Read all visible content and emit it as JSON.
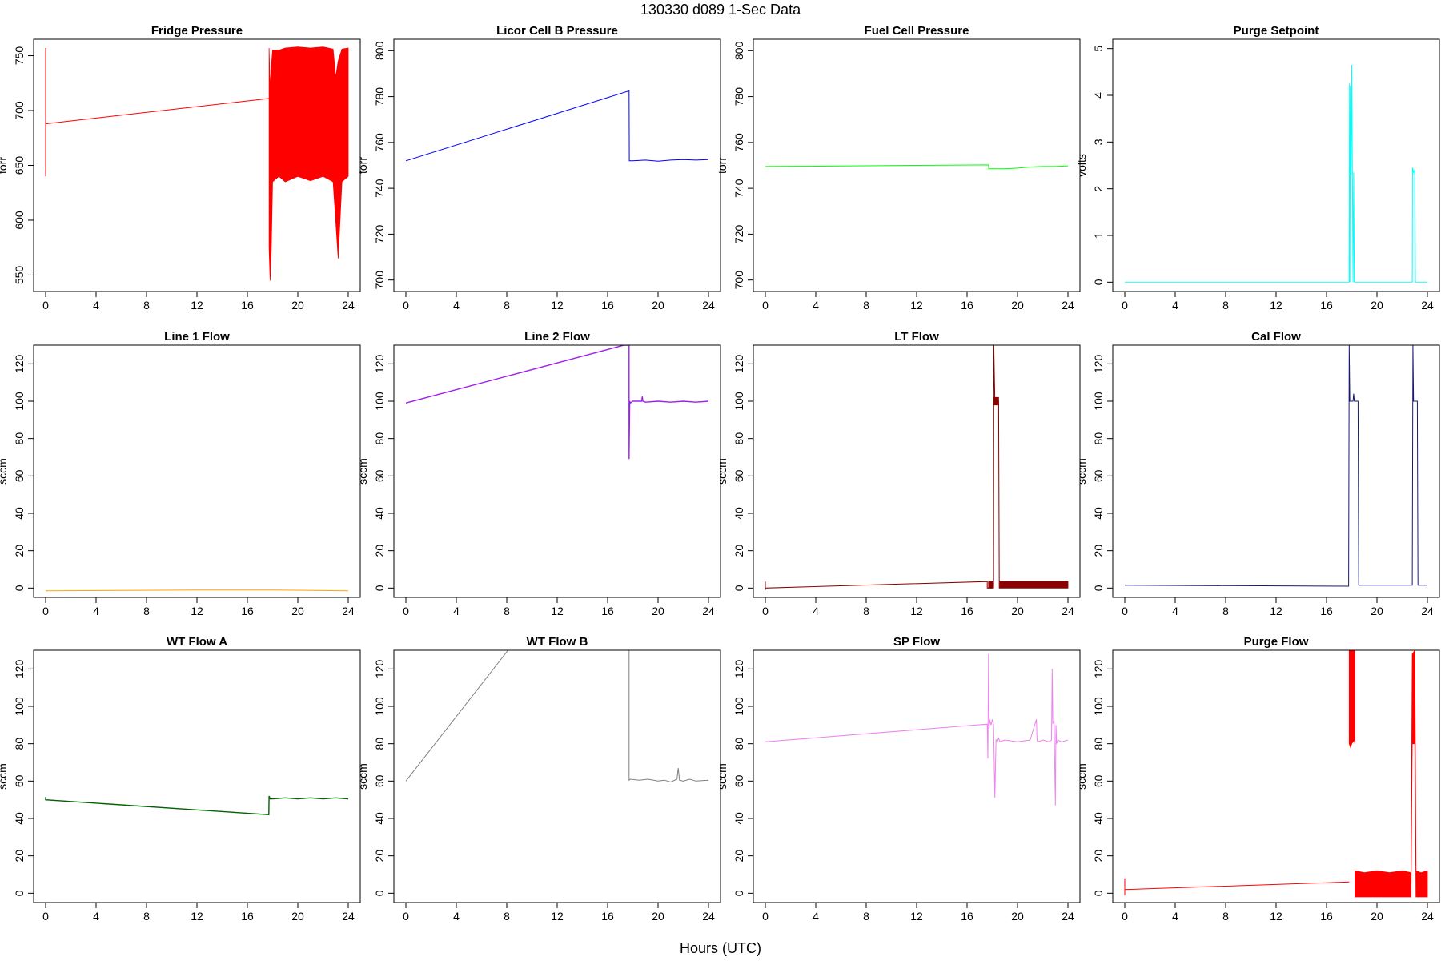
{
  "figure": {
    "title": "130330    d089    1-Sec Data",
    "xlabel": "Hours (UTC)"
  },
  "chart_data": [
    {
      "type": "line",
      "title": "Fridge Pressure",
      "ylabel": "torr",
      "xlim": [
        0,
        24
      ],
      "ylim": [
        535,
        765
      ],
      "xticks": [
        0,
        4,
        8,
        12,
        16,
        20,
        24
      ],
      "yticks": [
        550,
        600,
        650,
        700,
        750
      ],
      "color": "#ff0000",
      "series": [
        {
          "x": [
            0,
            0,
            0,
            0.05,
            17.7,
            17.72
          ],
          "y": [
            640,
            757,
            688,
            688,
            711,
            711
          ]
        },
        {
          "band": true,
          "x": [
            17.72,
            17.8,
            17.9,
            18.0,
            18.5,
            19,
            20,
            21,
            22,
            22.8,
            23.0,
            23.2,
            23.5,
            24.0
          ],
          "ymin": [
            575,
            545,
            575,
            635,
            640,
            635,
            640,
            636,
            640,
            635,
            600,
            565,
            635,
            640
          ],
          "ymax": [
            757,
            720,
            740,
            755,
            755,
            757,
            758,
            757,
            758,
            756,
            730,
            745,
            756,
            757
          ]
        }
      ]
    },
    {
      "type": "line",
      "title": "Licor Cell B Pressure",
      "ylabel": "torr",
      "xlim": [
        0,
        24
      ],
      "ylim": [
        695,
        805
      ],
      "xticks": [
        0,
        4,
        8,
        12,
        16,
        20,
        24
      ],
      "yticks": [
        700,
        720,
        740,
        760,
        780,
        800
      ],
      "color": "#0000ff",
      "series": [
        {
          "x": [
            0,
            17.7,
            17.72,
            18,
            19,
            20,
            21,
            22,
            23,
            24
          ],
          "y": [
            752,
            782.5,
            752,
            752,
            752.3,
            751.8,
            752.3,
            752.5,
            752.3,
            752.5
          ]
        }
      ]
    },
    {
      "type": "line",
      "title": "Fuel Cell Pressure",
      "ylabel": "torr",
      "xlim": [
        0,
        24
      ],
      "ylim": [
        695,
        805
      ],
      "xticks": [
        0,
        4,
        8,
        12,
        16,
        20,
        24
      ],
      "yticks": [
        700,
        720,
        740,
        760,
        780,
        800
      ],
      "color": "#00ff00",
      "series": [
        {
          "x": [
            0,
            17.7,
            17.72,
            19,
            20,
            21,
            22,
            23,
            24
          ],
          "y": [
            749.5,
            750.2,
            748.5,
            748.5,
            748.8,
            749.3,
            749.5,
            749.5,
            749.8
          ]
        }
      ]
    },
    {
      "type": "line",
      "title": "Purge Setpoint",
      "ylabel": "volts",
      "xlim": [
        0,
        24
      ],
      "ylim": [
        -0.2,
        5.2
      ],
      "xticks": [
        0,
        4,
        8,
        12,
        16,
        20,
        24
      ],
      "yticks": [
        0,
        1,
        2,
        3,
        4,
        5
      ],
      "color": "#00ffff",
      "series": [
        {
          "x": [
            0,
            17.8,
            17.82,
            17.85,
            17.9,
            17.95,
            18.0,
            18.05,
            18.1,
            18.15,
            18.2,
            18.25,
            22.8,
            22.82,
            22.9,
            23.0,
            23.05,
            23.1,
            24
          ],
          "y": [
            0,
            0,
            4.25,
            0,
            4.2,
            2.3,
            4.65,
            2.4,
            0,
            2.35,
            0,
            0,
            0,
            2.45,
            2.35,
            2.4,
            0,
            0,
            0
          ]
        }
      ]
    },
    {
      "type": "line",
      "title": "Line 1 Flow",
      "ylabel": "sccm",
      "xlim": [
        0,
        24
      ],
      "ylim": [
        -5,
        130
      ],
      "xticks": [
        0,
        4,
        8,
        12,
        16,
        20,
        24
      ],
      "yticks": [
        0,
        20,
        40,
        60,
        80,
        100,
        120
      ],
      "color": "#ffa500",
      "series": [
        {
          "x": [
            0,
            12,
            18,
            24
          ],
          "y": [
            -1.5,
            -1,
            -1,
            -1.5
          ]
        }
      ]
    },
    {
      "type": "line",
      "title": "Line 2 Flow",
      "ylabel": "sccm",
      "xlim": [
        0,
        24
      ],
      "ylim": [
        -5,
        130
      ],
      "xticks": [
        0,
        4,
        8,
        12,
        16,
        20,
        24
      ],
      "yticks": [
        0,
        20,
        40,
        60,
        80,
        100,
        120
      ],
      "color": "#a020f0",
      "series": [
        {
          "x": [
            0,
            17.3,
            17.7,
            17.7,
            17.75,
            17.8,
            18,
            18.7,
            18.75,
            18.8,
            19,
            20,
            21,
            22,
            23,
            24
          ],
          "y": [
            99,
            130,
            130,
            69,
            100,
            99,
            100,
            100,
            102.5,
            100,
            99.5,
            100,
            99.5,
            100,
            99.5,
            100
          ],
          "lw": 1.4
        }
      ]
    },
    {
      "type": "line",
      "title": "LT Flow",
      "ylabel": "sccm",
      "xlim": [
        0,
        24
      ],
      "ylim": [
        -5,
        130
      ],
      "xticks": [
        0,
        4,
        8,
        12,
        16,
        20,
        24
      ],
      "yticks": [
        0,
        20,
        40,
        60,
        80,
        100,
        120
      ],
      "color": "#8b0000",
      "series": [
        {
          "x": [
            0,
            0,
            0,
            17.6,
            17.6,
            17.8,
            18.0
          ],
          "y": [
            -1,
            3.5,
            0,
            3.5,
            0,
            0,
            0
          ]
        },
        {
          "band": true,
          "x": [
            17.7,
            18.1
          ],
          "ymin": [
            0,
            0
          ],
          "ymax": [
            3.5,
            3.5
          ]
        },
        {
          "x": [
            18.1,
            18.12,
            18.2,
            18.5,
            18.55,
            18.6
          ],
          "y": [
            0,
            130,
            100,
            100,
            0,
            0
          ]
        },
        {
          "band": true,
          "x": [
            18.1,
            18.5
          ],
          "ymin": [
            98,
            98
          ],
          "ymax": [
            102,
            102
          ]
        },
        {
          "band": true,
          "x": [
            18.6,
            24
          ],
          "ymin": [
            0,
            0
          ],
          "ymax": [
            3.5,
            3.5
          ]
        }
      ]
    },
    {
      "type": "line",
      "title": "Cal Flow",
      "ylabel": "sccm",
      "xlim": [
        0,
        24
      ],
      "ylim": [
        -5,
        130
      ],
      "xticks": [
        0,
        4,
        8,
        12,
        16,
        20,
        24
      ],
      "yticks": [
        0,
        20,
        40,
        60,
        80,
        100,
        120
      ],
      "color": "#191970",
      "series": [
        {
          "x": [
            0,
            17.75,
            17.8,
            17.85,
            18.1,
            18.15,
            18.2,
            18.5,
            18.55,
            22.8,
            22.85,
            22.9,
            23.2,
            23.25,
            24
          ],
          "y": [
            1.5,
            1,
            130,
            100,
            100,
            104,
            100,
            100,
            1.5,
            1.5,
            130,
            100,
            100,
            1.5,
            1.5
          ]
        }
      ]
    },
    {
      "type": "line",
      "title": "WT Flow A",
      "ylabel": "sccm",
      "xlim": [
        0,
        24
      ],
      "ylim": [
        -5,
        130
      ],
      "xticks": [
        0,
        4,
        8,
        12,
        16,
        20,
        24
      ],
      "yticks": [
        0,
        20,
        40,
        60,
        80,
        100,
        120
      ],
      "color": "#006400",
      "series": [
        {
          "x": [
            0,
            0,
            0,
            17.7,
            17.72,
            17.8,
            18,
            19,
            20,
            21,
            22,
            23,
            24
          ],
          "y": [
            50,
            51.5,
            50,
            42,
            52,
            50.5,
            50.5,
            51,
            50.5,
            51,
            50.5,
            51,
            50.5
          ],
          "lw": 1.4
        }
      ]
    },
    {
      "type": "line",
      "title": "WT Flow B",
      "ylabel": "sccm",
      "xlim": [
        0,
        24
      ],
      "ylim": [
        -5,
        130
      ],
      "xticks": [
        0,
        4,
        8,
        12,
        16,
        20,
        24
      ],
      "yticks": [
        0,
        20,
        40,
        60,
        80,
        100,
        120
      ],
      "color": "#808080",
      "series": [
        {
          "x": [
            0,
            8.1
          ],
          "y": [
            60,
            130
          ]
        },
        {
          "x": [
            17.7,
            17.7,
            17.8,
            18.5,
            19.2,
            20,
            20.5,
            21,
            21.5,
            21.6,
            21.7,
            22,
            22.5,
            23,
            24
          ],
          "y": [
            130,
            60.5,
            61,
            60.5,
            61,
            60,
            60.5,
            59.5,
            61,
            67,
            60.5,
            60,
            61,
            60,
            60.5
          ]
        }
      ]
    },
    {
      "type": "line",
      "title": "SP Flow",
      "ylabel": "sccm",
      "xlim": [
        0,
        24
      ],
      "ylim": [
        -5,
        130
      ],
      "xticks": [
        0,
        4,
        8,
        12,
        16,
        20,
        24
      ],
      "yticks": [
        0,
        20,
        40,
        60,
        80,
        100,
        120
      ],
      "color": "#ee82ee",
      "series": [
        {
          "x": [
            0,
            17.6,
            17.65,
            17.7,
            17.75,
            17.8,
            17.9,
            18.0,
            18.1,
            18.2,
            18.3,
            18.4,
            18.5,
            18.6,
            19,
            20,
            21,
            21.5,
            21.55,
            21.6,
            22,
            22.5,
            22.7,
            22.75,
            22.8,
            22.9,
            23.0,
            23.05,
            23.1,
            23.2,
            23.5,
            24
          ],
          "y": [
            81,
            90.5,
            72,
            128,
            88,
            93,
            90,
            93,
            90,
            51,
            82,
            81,
            83,
            81,
            82,
            81,
            82,
            93,
            82,
            81,
            82,
            81,
            82,
            120,
            91,
            92,
            47,
            90,
            80,
            82,
            81,
            82
          ]
        }
      ]
    },
    {
      "type": "line",
      "title": "Purge Flow",
      "ylabel": "sccm",
      "xlim": [
        0,
        24
      ],
      "ylim": [
        -5,
        130
      ],
      "xticks": [
        0,
        4,
        8,
        12,
        16,
        20,
        24
      ],
      "yticks": [
        0,
        20,
        40,
        60,
        80,
        100,
        120
      ],
      "color": "#ff0000",
      "series": [
        {
          "x": [
            0,
            0,
            0,
            17.8
          ],
          "y": [
            -1,
            8,
            2,
            6
          ]
        },
        {
          "band": true,
          "x": [
            17.8,
            17.9,
            18.0,
            18.2,
            18.25
          ],
          "ymin": [
            80,
            78,
            80,
            82,
            80
          ],
          "ymax": [
            130,
            130,
            130,
            130,
            130
          ]
        },
        {
          "band": true,
          "x": [
            18.25,
            19,
            20,
            21,
            22,
            22.7
          ],
          "ymin": [
            -2,
            -2,
            -2,
            -2,
            -2,
            -2
          ],
          "ymax": [
            12,
            11,
            12,
            11,
            12,
            11
          ]
        },
        {
          "band": true,
          "x": [
            22.7,
            22.8,
            23.0,
            23.1
          ],
          "ymin": [
            -2,
            80,
            80,
            -2
          ],
          "ymax": [
            12,
            128,
            130,
            12
          ]
        },
        {
          "band": true,
          "x": [
            23.1,
            23.5,
            24
          ],
          "ymin": [
            -2,
            -2,
            -2
          ],
          "ymax": [
            12,
            11,
            12
          ]
        }
      ]
    }
  ]
}
